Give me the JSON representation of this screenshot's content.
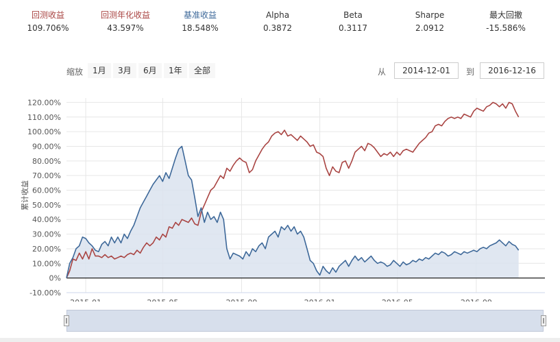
{
  "stats": [
    {
      "label": "回测收益",
      "value": "109.706%",
      "color": "#a94442"
    },
    {
      "label": "回测年化收益",
      "value": "43.597%",
      "color": "#a94442"
    },
    {
      "label": "基准收益",
      "value": "18.548%",
      "color": "#3d6899"
    },
    {
      "label": "Alpha",
      "value": "0.3872",
      "color": "#333333"
    },
    {
      "label": "Beta",
      "value": "0.3117",
      "color": "#333333"
    },
    {
      "label": "Sharpe",
      "value": "2.0912",
      "color": "#333333"
    },
    {
      "label": "最大回撤",
      "value": "-15.586%",
      "color": "#333333"
    }
  ],
  "range_selector": {
    "zoom_label": "缩放",
    "buttons": [
      "1月",
      "3月",
      "6月",
      "1年",
      "全部"
    ],
    "from_label": "从",
    "from_value": "2014-12-01",
    "to_label": "到",
    "to_value": "2016-12-16"
  },
  "chart_data": {
    "type": "line",
    "ylabel": "累计收益",
    "y_ticks": [
      "120.00%",
      "110.00%",
      "100.00%",
      "90.00%",
      "80.00%",
      "70.00%",
      "60.00%",
      "50.00%",
      "40.00%",
      "30.00%",
      "20.00%",
      "10.00%",
      "0%",
      "-10.00%"
    ],
    "y_tick_values": [
      120,
      110,
      100,
      90,
      80,
      70,
      60,
      50,
      40,
      30,
      20,
      10,
      0,
      -10
    ],
    "ylim": [
      -10,
      123
    ],
    "x_ticks": [
      "2015-01",
      "2015-05",
      "2015-09",
      "2016-01",
      "2016-05",
      "2016-09"
    ],
    "x_tick_values": [
      30,
      150,
      273,
      395,
      516,
      639
    ],
    "xlim": [
      0,
      746
    ],
    "grid": true,
    "series": [
      {
        "name": "回测收益",
        "color": "#a94442",
        "points": [
          [
            0,
            0
          ],
          [
            5,
            5
          ],
          [
            10,
            13
          ],
          [
            15,
            12
          ],
          [
            20,
            17
          ],
          [
            25,
            13
          ],
          [
            30,
            18
          ],
          [
            35,
            13
          ],
          [
            40,
            20
          ],
          [
            45,
            15
          ],
          [
            50,
            15
          ],
          [
            55,
            14
          ],
          [
            60,
            16
          ],
          [
            65,
            14
          ],
          [
            70,
            15
          ],
          [
            75,
            13
          ],
          [
            80,
            14
          ],
          [
            85,
            15
          ],
          [
            90,
            14
          ],
          [
            95,
            16
          ],
          [
            100,
            17
          ],
          [
            105,
            16
          ],
          [
            110,
            19
          ],
          [
            115,
            17
          ],
          [
            120,
            21
          ],
          [
            125,
            24
          ],
          [
            130,
            22
          ],
          [
            135,
            24
          ],
          [
            140,
            28
          ],
          [
            145,
            26
          ],
          [
            150,
            30
          ],
          [
            155,
            28
          ],
          [
            160,
            35
          ],
          [
            165,
            34
          ],
          [
            170,
            38
          ],
          [
            175,
            36
          ],
          [
            180,
            40
          ],
          [
            185,
            39
          ],
          [
            190,
            38
          ],
          [
            195,
            41
          ],
          [
            200,
            37
          ],
          [
            205,
            36
          ],
          [
            210,
            45
          ],
          [
            215,
            50
          ],
          [
            220,
            55
          ],
          [
            225,
            60
          ],
          [
            230,
            62
          ],
          [
            235,
            66
          ],
          [
            240,
            70
          ],
          [
            245,
            68
          ],
          [
            250,
            75
          ],
          [
            255,
            73
          ],
          [
            260,
            77
          ],
          [
            265,
            80
          ],
          [
            270,
            82
          ],
          [
            275,
            80
          ],
          [
            280,
            79
          ],
          [
            285,
            72
          ],
          [
            290,
            74
          ],
          [
            295,
            80
          ],
          [
            300,
            84
          ],
          [
            305,
            88
          ],
          [
            310,
            91
          ],
          [
            315,
            93
          ],
          [
            320,
            97
          ],
          [
            325,
            99
          ],
          [
            330,
            100
          ],
          [
            335,
            98
          ],
          [
            340,
            101
          ],
          [
            345,
            97
          ],
          [
            350,
            98
          ],
          [
            355,
            96
          ],
          [
            360,
            94
          ],
          [
            365,
            97
          ],
          [
            370,
            95
          ],
          [
            375,
            93
          ],
          [
            380,
            90
          ],
          [
            385,
            91
          ],
          [
            390,
            86
          ],
          [
            395,
            85
          ],
          [
            400,
            83
          ],
          [
            405,
            75
          ],
          [
            410,
            70
          ],
          [
            415,
            76
          ],
          [
            420,
            73
          ],
          [
            425,
            72
          ],
          [
            430,
            79
          ],
          [
            435,
            80
          ],
          [
            440,
            75
          ],
          [
            445,
            80
          ],
          [
            450,
            86
          ],
          [
            455,
            88
          ],
          [
            460,
            90
          ],
          [
            465,
            87
          ],
          [
            470,
            92
          ],
          [
            475,
            91
          ],
          [
            480,
            89
          ],
          [
            485,
            86
          ],
          [
            490,
            83
          ],
          [
            495,
            85
          ],
          [
            500,
            84
          ],
          [
            505,
            86
          ],
          [
            510,
            83
          ],
          [
            515,
            86
          ],
          [
            520,
            84
          ],
          [
            525,
            87
          ],
          [
            530,
            88
          ],
          [
            535,
            87
          ],
          [
            540,
            86
          ],
          [
            545,
            89
          ],
          [
            550,
            92
          ],
          [
            555,
            94
          ],
          [
            560,
            96
          ],
          [
            565,
            99
          ],
          [
            570,
            100
          ],
          [
            575,
            104
          ],
          [
            580,
            105
          ],
          [
            585,
            104
          ],
          [
            590,
            107
          ],
          [
            595,
            109
          ],
          [
            600,
            110
          ],
          [
            605,
            109
          ],
          [
            610,
            110
          ],
          [
            615,
            109
          ],
          [
            620,
            112
          ],
          [
            625,
            111
          ],
          [
            630,
            110
          ],
          [
            635,
            114
          ],
          [
            640,
            116
          ],
          [
            645,
            115
          ],
          [
            650,
            114
          ],
          [
            655,
            117
          ],
          [
            660,
            118
          ],
          [
            665,
            120
          ],
          [
            670,
            119
          ],
          [
            675,
            117
          ],
          [
            680,
            119
          ],
          [
            685,
            116
          ],
          [
            690,
            120
          ],
          [
            695,
            119
          ],
          [
            700,
            114
          ],
          [
            705,
            110
          ]
        ]
      },
      {
        "name": "基准收益",
        "color": "#3d6899",
        "points": [
          [
            0,
            0
          ],
          [
            5,
            10
          ],
          [
            10,
            14
          ],
          [
            15,
            20
          ],
          [
            20,
            22
          ],
          [
            25,
            28
          ],
          [
            30,
            27
          ],
          [
            35,
            24
          ],
          [
            40,
            22
          ],
          [
            45,
            19
          ],
          [
            50,
            18
          ],
          [
            55,
            23
          ],
          [
            60,
            25
          ],
          [
            65,
            22
          ],
          [
            70,
            28
          ],
          [
            75,
            24
          ],
          [
            80,
            28
          ],
          [
            85,
            24
          ],
          [
            90,
            30
          ],
          [
            95,
            27
          ],
          [
            100,
            32
          ],
          [
            105,
            36
          ],
          [
            110,
            42
          ],
          [
            115,
            48
          ],
          [
            120,
            52
          ],
          [
            125,
            56
          ],
          [
            130,
            60
          ],
          [
            135,
            64
          ],
          [
            140,
            67
          ],
          [
            145,
            70
          ],
          [
            150,
            66
          ],
          [
            155,
            72
          ],
          [
            160,
            68
          ],
          [
            165,
            75
          ],
          [
            170,
            82
          ],
          [
            175,
            88
          ],
          [
            180,
            90
          ],
          [
            185,
            80
          ],
          [
            190,
            70
          ],
          [
            195,
            67
          ],
          [
            200,
            55
          ],
          [
            205,
            42
          ],
          [
            210,
            48
          ],
          [
            215,
            38
          ],
          [
            220,
            45
          ],
          [
            225,
            40
          ],
          [
            230,
            42
          ],
          [
            235,
            38
          ],
          [
            240,
            45
          ],
          [
            245,
            40
          ],
          [
            250,
            20
          ],
          [
            255,
            13
          ],
          [
            260,
            17
          ],
          [
            265,
            16
          ],
          [
            270,
            15
          ],
          [
            275,
            13
          ],
          [
            280,
            18
          ],
          [
            285,
            15
          ],
          [
            290,
            20
          ],
          [
            295,
            18
          ],
          [
            300,
            22
          ],
          [
            305,
            24
          ],
          [
            310,
            20
          ],
          [
            315,
            28
          ],
          [
            320,
            30
          ],
          [
            325,
            32
          ],
          [
            330,
            28
          ],
          [
            335,
            35
          ],
          [
            340,
            33
          ],
          [
            345,
            36
          ],
          [
            350,
            32
          ],
          [
            355,
            35
          ],
          [
            360,
            30
          ],
          [
            365,
            32
          ],
          [
            370,
            28
          ],
          [
            375,
            20
          ],
          [
            380,
            12
          ],
          [
            385,
            10
          ],
          [
            390,
            5
          ],
          [
            395,
            2
          ],
          [
            400,
            8
          ],
          [
            405,
            5
          ],
          [
            410,
            3
          ],
          [
            415,
            7
          ],
          [
            420,
            4
          ],
          [
            425,
            8
          ],
          [
            430,
            10
          ],
          [
            435,
            12
          ],
          [
            440,
            8
          ],
          [
            445,
            12
          ],
          [
            450,
            15
          ],
          [
            455,
            12
          ],
          [
            460,
            14
          ],
          [
            465,
            11
          ],
          [
            470,
            13
          ],
          [
            475,
            15
          ],
          [
            480,
            12
          ],
          [
            485,
            10
          ],
          [
            490,
            11
          ],
          [
            495,
            10
          ],
          [
            500,
            8
          ],
          [
            505,
            9
          ],
          [
            510,
            12
          ],
          [
            515,
            10
          ],
          [
            520,
            8
          ],
          [
            525,
            11
          ],
          [
            530,
            9
          ],
          [
            535,
            10
          ],
          [
            540,
            12
          ],
          [
            545,
            11
          ],
          [
            550,
            13
          ],
          [
            555,
            12
          ],
          [
            560,
            14
          ],
          [
            565,
            13
          ],
          [
            570,
            15
          ],
          [
            575,
            17
          ],
          [
            580,
            16
          ],
          [
            585,
            18
          ],
          [
            590,
            17
          ],
          [
            595,
            15
          ],
          [
            600,
            16
          ],
          [
            605,
            18
          ],
          [
            610,
            17
          ],
          [
            615,
            16
          ],
          [
            620,
            18
          ],
          [
            625,
            17
          ],
          [
            630,
            18
          ],
          [
            635,
            19
          ],
          [
            640,
            18
          ],
          [
            645,
            20
          ],
          [
            650,
            21
          ],
          [
            655,
            20
          ],
          [
            660,
            22
          ],
          [
            665,
            23
          ],
          [
            670,
            24
          ],
          [
            675,
            26
          ],
          [
            680,
            24
          ],
          [
            685,
            22
          ],
          [
            690,
            25
          ],
          [
            695,
            23
          ],
          [
            700,
            22
          ],
          [
            705,
            19
          ]
        ]
      }
    ]
  },
  "navigator": {
    "left_handle": "navigator-left-handle",
    "right_handle": "navigator-right-handle"
  }
}
